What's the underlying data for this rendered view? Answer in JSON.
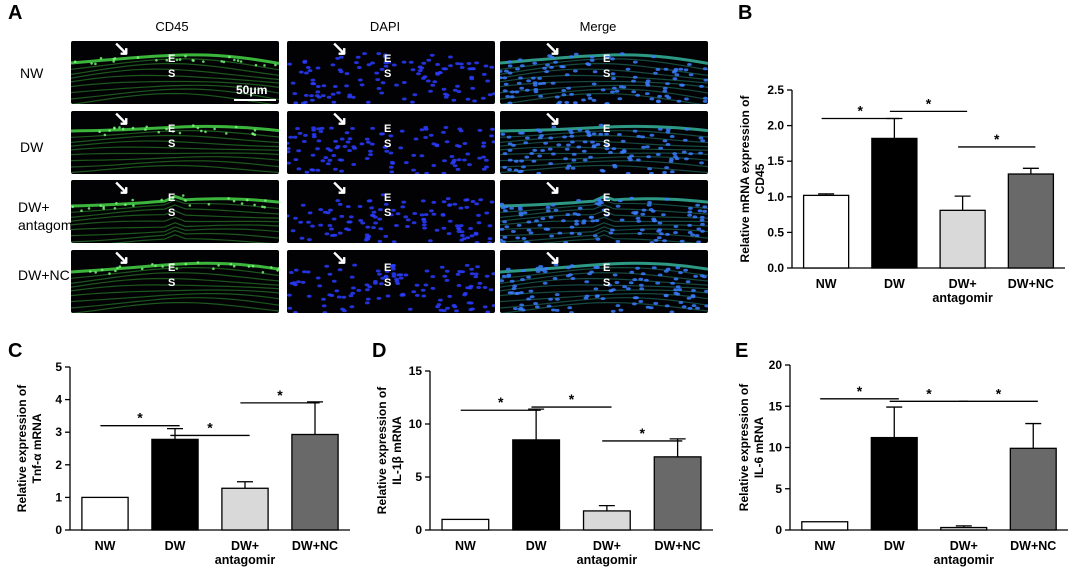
{
  "panel_letters": [
    "A",
    "B",
    "C",
    "D",
    "E"
  ],
  "panel_a": {
    "column_titles": [
      "CD45",
      "DAPI",
      "Merge"
    ],
    "row_labels": [
      [
        "NW"
      ],
      [
        "DW"
      ],
      [
        "DW+",
        "antagomir"
      ],
      [
        "DW+NC"
      ]
    ],
    "layer_marks": [
      "E",
      "S"
    ],
    "scale_bar": "50μm",
    "arrow_glyph": "↘"
  },
  "colors": {
    "nw": "#ffffff",
    "dw": "#000000",
    "antagomir": "#d9d9d9",
    "nc": "#696969",
    "cd45_green": "#3fbf3f",
    "dapi_blue": "#2a3cff"
  },
  "chart_data": [
    {
      "id": "B",
      "type": "bar",
      "categories": [
        [
          "NW"
        ],
        [
          "DW"
        ],
        [
          "DW+",
          "antagomir"
        ],
        [
          "DW+NC"
        ]
      ],
      "values": [
        1.02,
        1.82,
        0.81,
        1.32
      ],
      "errors": [
        0.02,
        0.28,
        0.2,
        0.08
      ],
      "ylabel": [
        "Relative mRNA expression of",
        "CD45"
      ],
      "ylim": [
        0,
        2.5
      ],
      "yticks": [
        "0.0",
        "0.5",
        "1.0",
        "1.5",
        "2.0",
        "2.5"
      ],
      "significance": [
        {
          "from": 0,
          "to": 1,
          "y": 2.1,
          "label": "*"
        },
        {
          "from": 1,
          "to": 2,
          "y": 2.2,
          "label": "*"
        },
        {
          "from": 2,
          "to": 3,
          "y": 1.7,
          "label": "*"
        }
      ]
    },
    {
      "id": "C",
      "type": "bar",
      "categories": [
        [
          "NW"
        ],
        [
          "DW"
        ],
        [
          "DW+",
          "antagomir"
        ],
        [
          "DW+NC"
        ]
      ],
      "values": [
        1.0,
        2.78,
        1.28,
        2.93
      ],
      "errors": [
        0.0,
        0.33,
        0.2,
        1.0
      ],
      "ylabel": [
        "Relative expression of",
        "Tnf-α mRNA"
      ],
      "ylim": [
        0,
        5
      ],
      "yticks": [
        "0",
        "1",
        "2",
        "3",
        "4",
        "5"
      ],
      "significance": [
        {
          "from": 0,
          "to": 1,
          "y": 3.2,
          "label": "*"
        },
        {
          "from": 1,
          "to": 2,
          "y": 2.9,
          "label": "*"
        },
        {
          "from": 2,
          "to": 3,
          "y": 3.9,
          "label": "*"
        }
      ]
    },
    {
      "id": "D",
      "type": "bar",
      "categories": [
        [
          "NW"
        ],
        [
          "DW"
        ],
        [
          "DW+",
          "antagomir"
        ],
        [
          "DW+NC"
        ]
      ],
      "values": [
        1.0,
        8.5,
        1.8,
        6.9
      ],
      "errors": [
        0.0,
        2.9,
        0.5,
        1.7
      ],
      "ylabel": [
        "Relative expression of",
        "IL-1β mRNA"
      ],
      "ylim": [
        0,
        15
      ],
      "yticks": [
        "0",
        "5",
        "10",
        "15"
      ],
      "significance": [
        {
          "from": 0,
          "to": 1,
          "y": 11.3,
          "label": "*"
        },
        {
          "from": 1,
          "to": 2,
          "y": 11.6,
          "label": "*"
        },
        {
          "from": 2,
          "to": 3,
          "y": 8.4,
          "label": "*"
        }
      ]
    },
    {
      "id": "E",
      "type": "bar",
      "categories": [
        [
          "NW"
        ],
        [
          "DW"
        ],
        [
          "DW+",
          "antagomir"
        ],
        [
          "DW+NC"
        ]
      ],
      "values": [
        1.0,
        11.2,
        0.3,
        9.9
      ],
      "errors": [
        0.0,
        3.7,
        0.2,
        3.0
      ],
      "ylabel": [
        "Relative expression of",
        "IL-6 mRNA"
      ],
      "ylim": [
        0,
        20
      ],
      "yticks": [
        "0",
        "5",
        "10",
        "15",
        "20"
      ],
      "significance": [
        {
          "from": 0,
          "to": 1,
          "y": 15.9,
          "label": "*"
        },
        {
          "from": 1,
          "to": 2,
          "y": 15.6,
          "label": "*"
        },
        {
          "from": 2,
          "to": 3,
          "y": 15.6,
          "label": "*"
        }
      ]
    }
  ]
}
